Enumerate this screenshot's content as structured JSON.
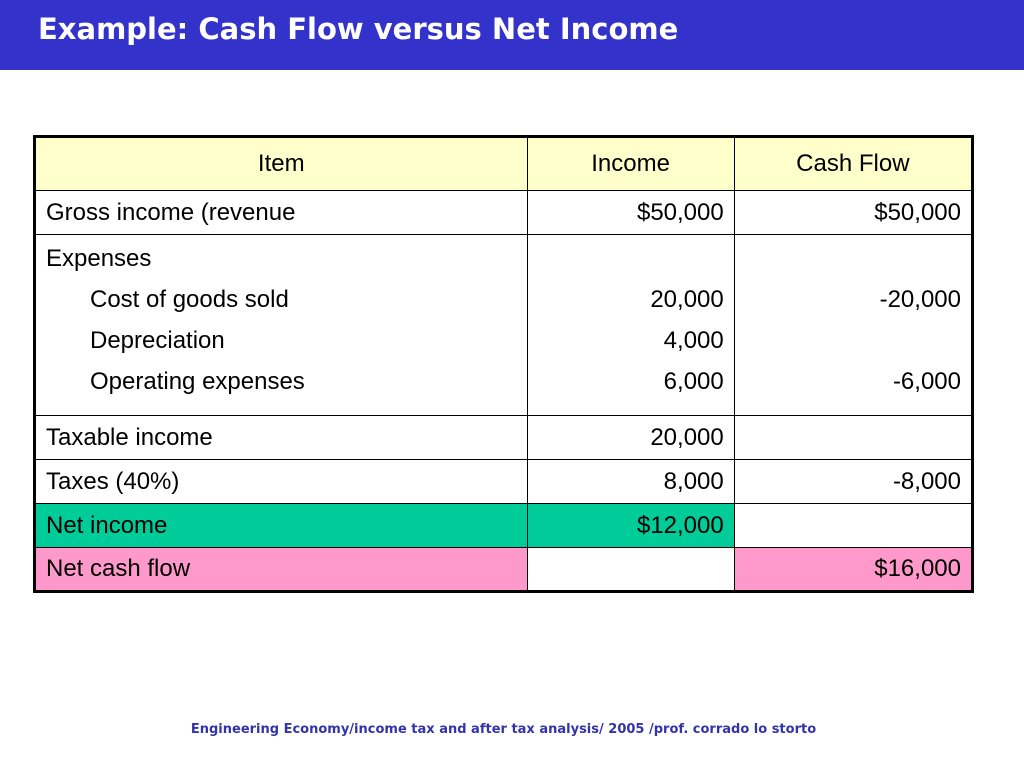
{
  "slide": {
    "title": "Example: Cash Flow versus Net Income",
    "footer": "Engineering Economy/income tax and after tax analysis/ 2005 /prof. corrado lo storto"
  },
  "table": {
    "headers": {
      "item": "Item",
      "income": "Income",
      "cash": "Cash Flow"
    },
    "rows": {
      "gross": {
        "item": "Gross income (revenue",
        "income": "$50,000",
        "cash": "$50,000"
      },
      "expenses": {
        "item": "Expenses",
        "income": "",
        "cash": ""
      },
      "cogs": {
        "item": "Cost of goods sold",
        "income": "20,000",
        "cash": "-20,000"
      },
      "depr": {
        "item": "Depreciation",
        "income": "4,000",
        "cash": ""
      },
      "opex": {
        "item": "Operating expenses",
        "income": "6,000",
        "cash": "-6,000"
      },
      "taxable": {
        "item": "Taxable income",
        "income": "20,000",
        "cash": ""
      },
      "taxes": {
        "item": "Taxes (40%)",
        "income": "8,000",
        "cash": "-8,000"
      },
      "netincome": {
        "item": "Net income",
        "income": "$12,000",
        "cash": ""
      },
      "netcash": {
        "item": "Net cash flow",
        "income": "",
        "cash": "$16,000"
      }
    }
  },
  "colors": {
    "title_bar": "#3333cc",
    "header_bg": "#ffffcc",
    "net_income_bg": "#00cc99",
    "net_cash_bg": "#ff99cc",
    "footer_text": "#3333aa"
  }
}
